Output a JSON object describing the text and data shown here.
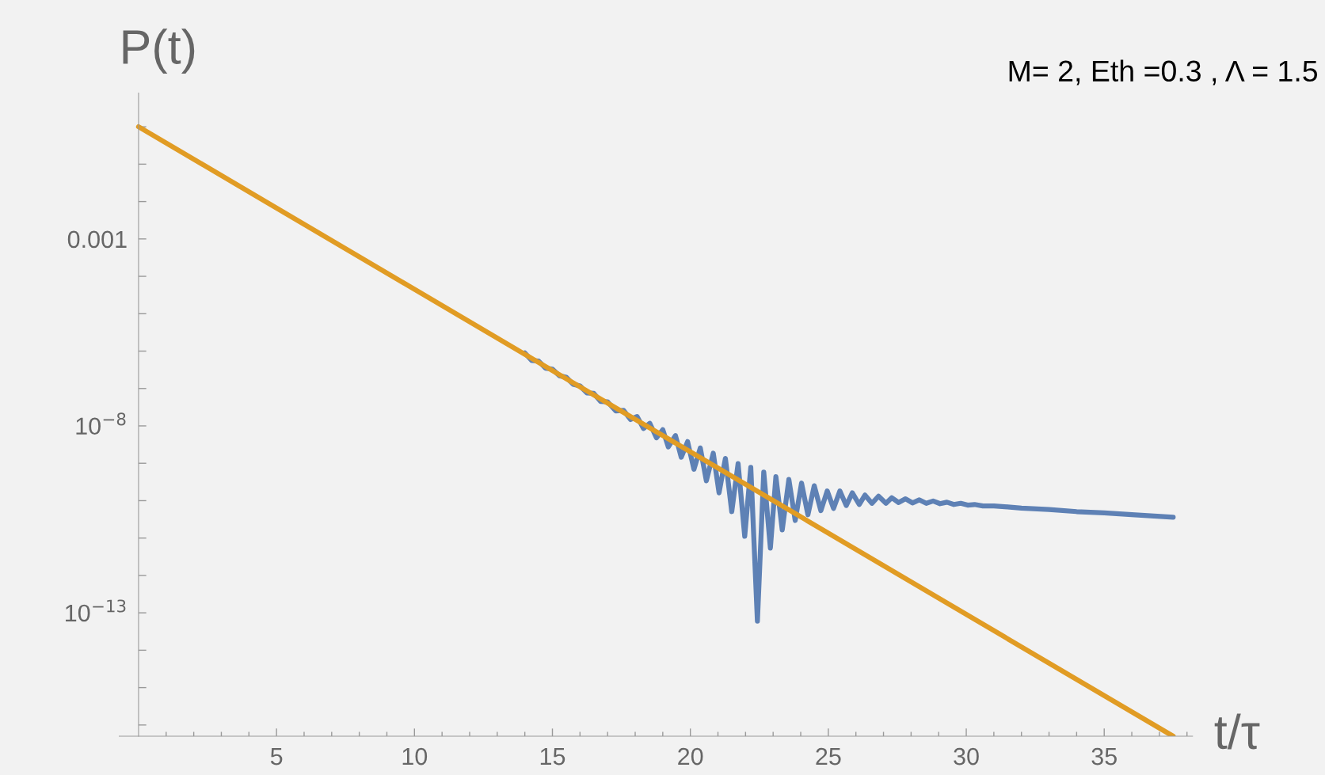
{
  "chart_data": {
    "type": "line",
    "xlabel": "t/τ",
    "ylabel": "P(t)",
    "log": "y",
    "grid": false,
    "legend": false,
    "annotations": [
      "M= 2, Eth =0.3 , Λ = 1.5"
    ],
    "xlim": [
      -0.7,
      38.2
    ],
    "ylim": [
      5e-17,
      8
    ],
    "xticks": [
      {
        "value": 1,
        "label": null
      },
      {
        "value": 2,
        "label": null
      },
      {
        "value": 3,
        "label": null
      },
      {
        "value": 4,
        "label": null
      },
      5,
      {
        "value": 6,
        "label": null
      },
      {
        "value": 7,
        "label": null
      },
      {
        "value": 8,
        "label": null
      },
      {
        "value": 9,
        "label": null
      },
      10,
      {
        "value": 11,
        "label": null
      },
      {
        "value": 12,
        "label": null
      },
      {
        "value": 13,
        "label": null
      },
      {
        "value": 14,
        "label": null
      },
      15,
      {
        "value": 16,
        "label": null
      },
      {
        "value": 17,
        "label": null
      },
      {
        "value": 18,
        "label": null
      },
      {
        "value": 19,
        "label": null
      },
      20,
      {
        "value": 21,
        "label": null
      },
      {
        "value": 22,
        "label": null
      },
      {
        "value": 23,
        "label": null
      },
      {
        "value": 24,
        "label": null
      },
      25,
      {
        "value": 26,
        "label": null
      },
      {
        "value": 27,
        "label": null
      },
      {
        "value": 28,
        "label": null
      },
      {
        "value": 29,
        "label": null
      },
      30,
      {
        "value": 31,
        "label": null
      },
      {
        "value": 32,
        "label": null
      },
      {
        "value": 33,
        "label": null
      },
      {
        "value": 34,
        "label": null
      },
      35,
      {
        "value": 36,
        "label": null
      },
      {
        "value": 37,
        "label": null
      },
      {
        "value": 38,
        "label": null
      }
    ],
    "yticks": [
      {
        "value": 1,
        "label": null
      },
      {
        "value": 0.1,
        "label": null
      },
      {
        "value": 0.01,
        "label": null
      },
      {
        "value": 0.001,
        "label": "0.001"
      },
      {
        "value": 0.0001,
        "label": null
      },
      {
        "value": 1e-05,
        "label": null
      },
      {
        "value": 1e-06,
        "label": null
      },
      {
        "value": 1e-07,
        "label": null
      },
      {
        "value": 1e-08,
        "label": "10$^{−8}$"
      },
      {
        "value": 1e-09,
        "label": null
      },
      {
        "value": 1e-10,
        "label": null
      },
      {
        "value": 1e-11,
        "label": null
      },
      {
        "value": 1e-12,
        "label": null
      },
      {
        "value": 1e-13,
        "label": "10$^{−13}$"
      },
      {
        "value": 1e-14,
        "label": null
      },
      {
        "value": 1e-15,
        "label": null
      },
      {
        "value": 1e-16,
        "label": null
      }
    ],
    "series": [
      {
        "color": "#5e81b5",
        "x": [
          14.0,
          14.25,
          14.5,
          14.75,
          15.0,
          15.25,
          15.5,
          15.75,
          16.0,
          16.25,
          16.5,
          16.75,
          17.0,
          17.3,
          17.58,
          17.83,
          18.07,
          18.3,
          18.53,
          18.77,
          19.0,
          19.2,
          19.46,
          19.67,
          19.9,
          20.13,
          20.36,
          20.58,
          20.83,
          21.04,
          21.27,
          21.5,
          21.73,
          21.97,
          22.19,
          22.43,
          22.66,
          22.9,
          23.1,
          23.33,
          23.57,
          23.8,
          24.03,
          24.26,
          24.49,
          24.73,
          24.96,
          25.19,
          25.42,
          25.65,
          25.87,
          26.12,
          26.33,
          26.58,
          26.82,
          27.09,
          27.3,
          27.55,
          27.8,
          28.05,
          28.3,
          28.55,
          28.8,
          29.05,
          29.3,
          29.55,
          29.8,
          30.05,
          30.3,
          30.6,
          31,
          31.5,
          32,
          33,
          34,
          35,
          36,
          37.5
        ],
        "values": [
          8.9e-07,
          5.6e-07,
          5.4e-07,
          3.5e-07,
          3.3e-07,
          2.2e-07,
          2e-07,
          1.3e-07,
          1.17e-07,
          7.6e-08,
          7.4e-08,
          4.5e-08,
          4.4e-08,
          2.5e-08,
          2.6e-08,
          1.48e-08,
          1.78e-08,
          8.5e-09,
          1.17e-08,
          4.8e-09,
          7.9e-09,
          2.75e-09,
          5.5e-09,
          1.45e-09,
          3.8e-09,
          6.9e-10,
          2.57e-09,
          3.4e-10,
          1.86e-09,
          1.62e-10,
          1.35e-09,
          5.1e-11,
          9.8e-10,
          1.12e-11,
          7.8e-10,
          6e-14,
          5.8e-10,
          5.4e-12,
          4.4e-10,
          1.66e-11,
          3.7e-10,
          2.95e-11,
          2.95e-10,
          4.2e-11,
          2.5e-10,
          5.4e-11,
          1.82e-10,
          6.2e-11,
          1.82e-10,
          7.4e-11,
          1.62e-10,
          7.9e-11,
          1.41e-10,
          8.5e-11,
          1.32e-10,
          8.5e-11,
          1.2e-10,
          8.9e-11,
          1.12e-10,
          8.7e-11,
          1.05e-10,
          8.5e-11,
          9.8e-11,
          8.3e-11,
          9.1e-11,
          7.9e-11,
          8.5e-11,
          7.6e-11,
          7.9e-11,
          7.2e-11,
          7.2e-11,
          6.8e-11,
          6.3e-11,
          5.8e-11,
          5.1e-11,
          4.7e-11,
          4.2e-11,
          3.6e-11
        ]
      },
      {
        "color": "#e19c24",
        "x": [
          0,
          37.5
        ],
        "values": [
          1,
          5e-17
        ]
      }
    ]
  }
}
